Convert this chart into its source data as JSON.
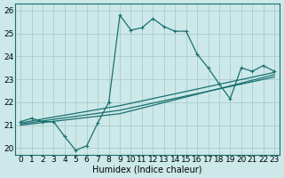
{
  "xlabel": "Humidex (Indice chaleur)",
  "background_color": "#cce8e8",
  "grid_color": "#aacccc",
  "line_color": "#1a7070",
  "xlim": [
    -0.5,
    23.5
  ],
  "ylim": [
    19.7,
    26.3
  ],
  "xticks": [
    0,
    1,
    2,
    3,
    4,
    5,
    6,
    7,
    8,
    9,
    10,
    11,
    12,
    13,
    14,
    15,
    16,
    17,
    18,
    19,
    20,
    21,
    22,
    23
  ],
  "yticks": [
    20,
    21,
    22,
    23,
    24,
    25,
    26
  ],
  "series1_x": [
    0,
    1,
    2,
    3,
    4,
    5,
    6,
    7,
    8,
    9,
    10,
    11,
    12,
    13,
    14,
    15,
    16,
    17,
    18,
    19,
    20,
    21,
    22,
    23
  ],
  "series1_y": [
    21.15,
    21.3,
    21.15,
    21.15,
    20.5,
    19.9,
    20.1,
    21.1,
    22.0,
    25.8,
    25.15,
    25.25,
    25.65,
    25.3,
    25.1,
    25.1,
    24.1,
    23.5,
    22.8,
    22.15,
    23.5,
    23.35,
    23.6,
    23.35
  ],
  "series2_x": [
    0,
    9,
    23
  ],
  "series2_y": [
    21.1,
    21.85,
    23.3
  ],
  "series3_x": [
    0,
    9,
    23
  ],
  "series3_y": [
    21.05,
    21.65,
    23.1
  ],
  "series4_x": [
    0,
    9,
    23
  ],
  "series4_y": [
    21.0,
    21.5,
    23.2
  ],
  "xlabel_fontsize": 7,
  "tick_fontsize": 6.5
}
